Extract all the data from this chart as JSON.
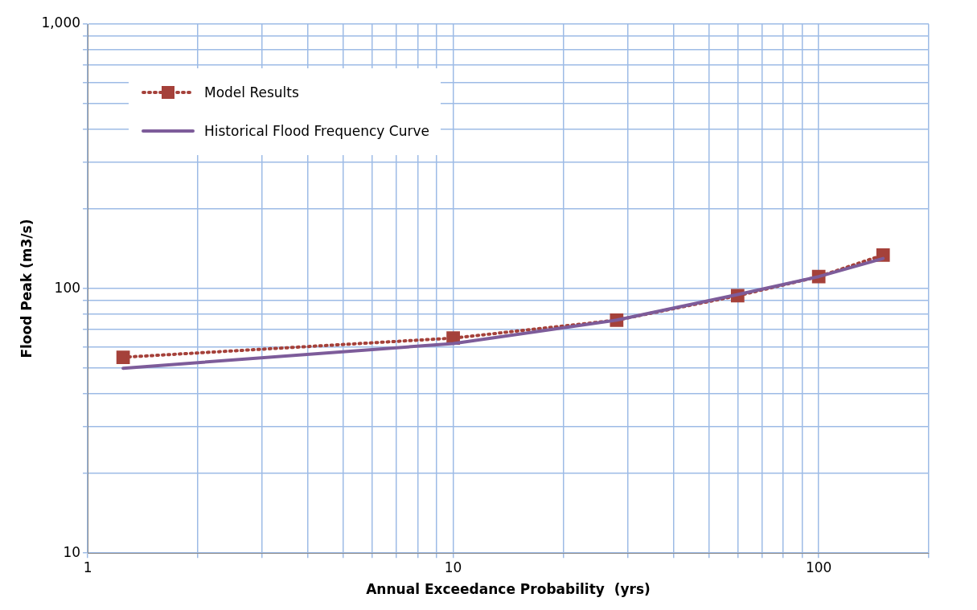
{
  "chart_data": {
    "type": "line",
    "xlabel": "Annual Exceedance Probability  (yrs)",
    "ylabel": "Flood Peak (m3/s)",
    "log": "xy",
    "grid": true,
    "legend": "top left",
    "xlim": [
      1,
      200
    ],
    "xticks": [
      1,
      {
        "value": 2,
        "label": null
      },
      {
        "value": 3,
        "label": null
      },
      {
        "value": 4,
        "label": null
      },
      {
        "value": 5,
        "label": null
      },
      {
        "value": 6,
        "label": null
      },
      {
        "value": 7,
        "label": null
      },
      {
        "value": 8,
        "label": null
      },
      {
        "value": 9,
        "label": null
      },
      10,
      {
        "value": 20,
        "label": null
      },
      {
        "value": 30,
        "label": null
      },
      {
        "value": 40,
        "label": null
      },
      {
        "value": 50,
        "label": null
      },
      {
        "value": 60,
        "label": null
      },
      {
        "value": 70,
        "label": null
      },
      {
        "value": 80,
        "label": null
      },
      {
        "value": 90,
        "label": null
      },
      100,
      {
        "value": 200,
        "label": null
      }
    ],
    "ylim": [
      10,
      1000
    ],
    "yticks": [
      10,
      {
        "value": 20,
        "label": null
      },
      {
        "value": 30,
        "label": null
      },
      {
        "value": 40,
        "label": null
      },
      {
        "value": 50,
        "label": null
      },
      {
        "value": 60,
        "label": null
      },
      {
        "value": 70,
        "label": null
      },
      {
        "value": 80,
        "label": null
      },
      {
        "value": 90,
        "label": null
      },
      100,
      {
        "value": 200,
        "label": null
      },
      {
        "value": 300,
        "label": null
      },
      {
        "value": 400,
        "label": null
      },
      {
        "value": 500,
        "label": null
      },
      {
        "value": 600,
        "label": null
      },
      {
        "value": 700,
        "label": null
      },
      {
        "value": 800,
        "label": null
      },
      {
        "value": 900,
        "label": null
      },
      {
        "value": 1000,
        "label": "1,000"
      }
    ],
    "x": [
      1.25,
      10,
      28,
      60,
      100,
      150
    ],
    "series": [
      {
        "name": "Model Results",
        "color": "#a5413a",
        "values": [
          55,
          65,
          76,
          94,
          111,
          134
        ],
        "marker": "square",
        "line_style": "dotted"
      },
      {
        "name": "Historical Flood Frequency Curve",
        "color": "#7d5c9a",
        "values": [
          50,
          62,
          76,
          95,
          111,
          130
        ],
        "marker": "none",
        "line_style": "solid"
      }
    ]
  }
}
